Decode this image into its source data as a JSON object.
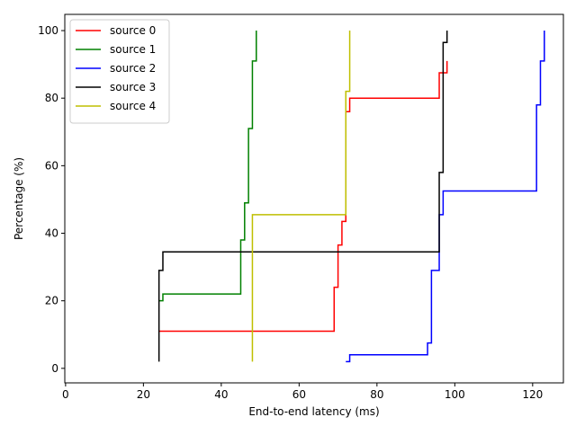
{
  "chart_data": {
    "type": "line",
    "drawstyle": "steps-post",
    "x_label": "End-to-end latency (ms)",
    "y_label": "Percentage (%)",
    "xlim": [
      -0.2,
      127.9
    ],
    "ylim": [
      -4.3,
      104.8
    ],
    "xticks": [
      0,
      20,
      40,
      60,
      80,
      100,
      120
    ],
    "yticks": [
      0,
      20,
      40,
      60,
      80,
      100
    ],
    "legend": "upper left",
    "series": [
      {
        "name": "source 0",
        "color": "#ff0000",
        "x": [
          24,
          69,
          70,
          71,
          72,
          73,
          96,
          98
        ],
        "values": [
          11,
          24,
          36.5,
          43.5,
          76,
          80,
          87.5,
          91
        ]
      },
      {
        "name": "source 1",
        "color": "#008000",
        "x": [
          24,
          25,
          45,
          46,
          47,
          48,
          49
        ],
        "values": [
          20,
          22,
          38,
          49,
          71,
          91,
          100
        ]
      },
      {
        "name": "source 2",
        "color": "#0000ff",
        "x": [
          72,
          73,
          93,
          94,
          96,
          97,
          121,
          122,
          123
        ],
        "values": [
          2,
          4,
          7.5,
          29,
          45.5,
          52.5,
          78,
          91,
          100
        ]
      },
      {
        "name": "source 3",
        "color": "#000000",
        "x": [
          24,
          24,
          25,
          96,
          96,
          97,
          98
        ],
        "values": [
          2,
          29,
          34.5,
          45.5,
          58,
          96.5,
          100
        ]
      },
      {
        "name": "source 4",
        "color": "#bfbf00",
        "x": [
          48,
          48,
          72,
          72,
          73
        ],
        "values": [
          2,
          45.5,
          76,
          82,
          100
        ]
      }
    ]
  }
}
